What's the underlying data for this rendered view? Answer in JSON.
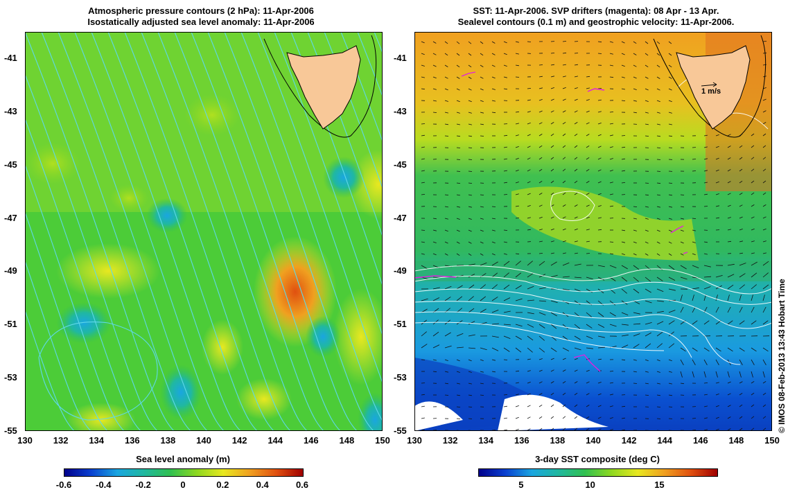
{
  "left_panel": {
    "title_line1": "Atmospheric pressure contours (2 hPa): 11-Apr-2006",
    "title_line2": "Isostatically adjusted sea level anomaly: 11-Apr-2006",
    "colorbar_label": "Sea level anomaly (m)",
    "colorbar_ticks": [
      "-0.6",
      "-0.4",
      "-0.2",
      "0",
      "0.2",
      "0.4",
      "0.6"
    ],
    "colormap": [
      "#00008b",
      "#0a40d0",
      "#1aa6e0",
      "#20b8a0",
      "#30c050",
      "#8ed820",
      "#e8e820",
      "#f0a020",
      "#e05010",
      "#a00000"
    ]
  },
  "right_panel": {
    "title_line1": "SST: 11-Apr-2006. SVP drifters (magenta): 08 Apr - 13 Apr.",
    "title_line2": "Sealevel contours (0.1 m) and geostrophic velocity: 11-Apr-2006.",
    "colorbar_label": "3-day SST composite (deg C)",
    "colorbar_ticks": [
      "5",
      "10",
      "15"
    ],
    "velocity_scale_label": "1 m/s",
    "colormap": [
      "#00008b",
      "#0a40d0",
      "#1aa6e0",
      "#20b8a0",
      "#30c050",
      "#8ed820",
      "#e8e820",
      "#f0a020",
      "#e05010",
      "#a00000"
    ]
  },
  "axes": {
    "y_ticks": [
      "-41",
      "-43",
      "-45",
      "-47",
      "-49",
      "-51",
      "-53",
      "-55"
    ],
    "x_ticks": [
      "130",
      "132",
      "134",
      "136",
      "138",
      "140",
      "142",
      "144",
      "146",
      "148",
      "150"
    ]
  },
  "credit": "© IMOS 08-Feb-2013 13:43 Hobart Time",
  "colors": {
    "land": "#f8c898",
    "pressure_contour": "#5fd8e8",
    "sealevel_contour": "#ffffff",
    "drifter": "#e020e0"
  }
}
